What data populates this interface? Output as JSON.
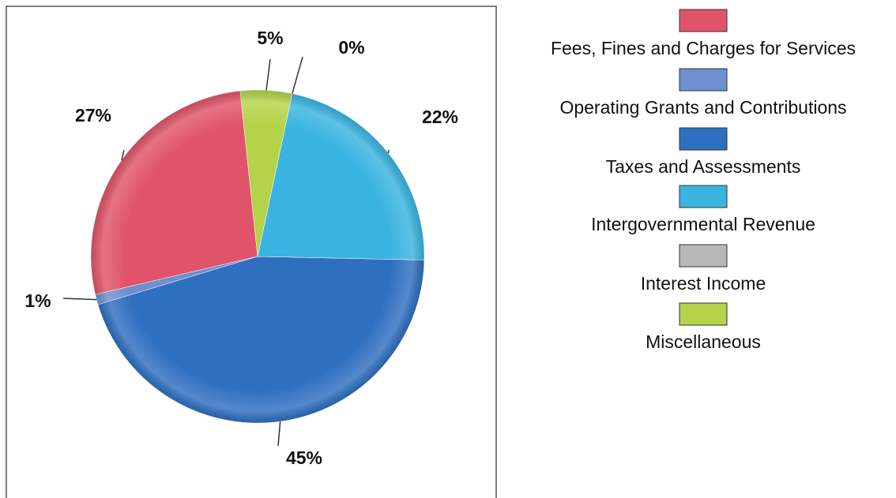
{
  "chart_data": {
    "type": "pie",
    "categories": [
      "Fees, Fines and Charges for Services",
      "Operating Grants and Contributions",
      "Taxes and Assessments",
      "Intergovernmental Revenue",
      "Interest Income",
      "Miscellaneous"
    ],
    "values": [
      27,
      1,
      45,
      22,
      0,
      5
    ],
    "value_labels": [
      "27%",
      "1%",
      "45%",
      "22%",
      "0%",
      "5%"
    ],
    "colors": [
      "#e0546a",
      "#6e8fd0",
      "#2f6fc0",
      "#3ab4e0",
      "#b8b8b8",
      "#b5d34a"
    ]
  }
}
